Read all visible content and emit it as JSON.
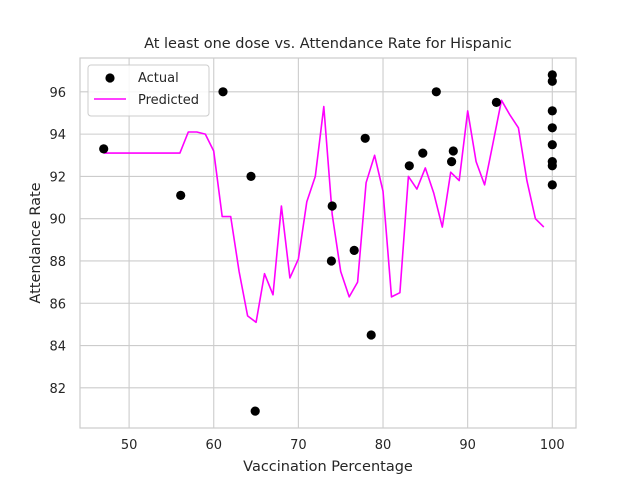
{
  "chart_data": {
    "type": "scatter",
    "title": "At least one dose vs. Attendance Rate for Hispanic",
    "xlabel": "Vaccination Percentage",
    "ylabel": "Attendance Rate",
    "xlim": [
      44.2,
      102.8
    ],
    "ylim": [
      80.1,
      97.6
    ],
    "xticks": [
      50,
      60,
      70,
      80,
      90,
      100
    ],
    "yticks": [
      82,
      84,
      86,
      88,
      90,
      92,
      94,
      96
    ],
    "grid": true,
    "legend_position": "top-left",
    "series": [
      {
        "name": "Actual",
        "kind": "scatter",
        "color": "#000000",
        "points": [
          [
            47.0,
            93.3
          ],
          [
            56.1,
            91.1
          ],
          [
            61.1,
            96.0
          ],
          [
            64.4,
            92.0
          ],
          [
            64.9,
            80.9
          ],
          [
            74.0,
            90.6
          ],
          [
            73.9,
            88.0
          ],
          [
            76.6,
            88.5
          ],
          [
            77.9,
            93.8
          ],
          [
            78.6,
            84.5
          ],
          [
            83.1,
            92.5
          ],
          [
            84.7,
            93.1
          ],
          [
            86.3,
            96.0
          ],
          [
            88.1,
            92.7
          ],
          [
            88.3,
            93.2
          ],
          [
            93.4,
            95.5
          ],
          [
            100,
            96.8
          ],
          [
            100,
            96.5
          ],
          [
            100,
            95.1
          ],
          [
            100,
            94.3
          ],
          [
            100,
            93.5
          ],
          [
            100,
            92.7
          ],
          [
            100,
            92.5
          ],
          [
            100,
            91.6
          ]
        ]
      },
      {
        "name": "Predicted",
        "kind": "line",
        "color": "#ff00ff",
        "points": [
          [
            47,
            93.1
          ],
          [
            48,
            93.1
          ],
          [
            49,
            93.1
          ],
          [
            50,
            93.1
          ],
          [
            51,
            93.1
          ],
          [
            52,
            93.1
          ],
          [
            53,
            93.1
          ],
          [
            54,
            93.1
          ],
          [
            55,
            93.1
          ],
          [
            56,
            93.1
          ],
          [
            57,
            94.1
          ],
          [
            58,
            94.1
          ],
          [
            59,
            94.0
          ],
          [
            60,
            93.2
          ],
          [
            61,
            90.1
          ],
          [
            62,
            90.1
          ],
          [
            63,
            87.5
          ],
          [
            64,
            85.4
          ],
          [
            65,
            85.1
          ],
          [
            66,
            87.4
          ],
          [
            67,
            86.4
          ],
          [
            68,
            90.6
          ],
          [
            69,
            87.2
          ],
          [
            70,
            88.1
          ],
          [
            71,
            90.8
          ],
          [
            72,
            92.0
          ],
          [
            73,
            95.3
          ],
          [
            74,
            90.2
          ],
          [
            75,
            87.5
          ],
          [
            76,
            86.3
          ],
          [
            77,
            87.0
          ],
          [
            78,
            91.7
          ],
          [
            79,
            93.0
          ],
          [
            80,
            91.3
          ],
          [
            81,
            86.3
          ],
          [
            82,
            86.5
          ],
          [
            83,
            92.0
          ],
          [
            84,
            91.4
          ],
          [
            85,
            92.4
          ],
          [
            86,
            91.2
          ],
          [
            87,
            89.6
          ],
          [
            88,
            92.2
          ],
          [
            89,
            91.8
          ],
          [
            90,
            95.1
          ],
          [
            91,
            92.7
          ],
          [
            92,
            91.6
          ],
          [
            93,
            93.6
          ],
          [
            94,
            95.6
          ],
          [
            95,
            94.9
          ],
          [
            96,
            94.3
          ],
          [
            97,
            91.8
          ],
          [
            98,
            90.0
          ],
          [
            99,
            89.6
          ]
        ]
      }
    ]
  }
}
